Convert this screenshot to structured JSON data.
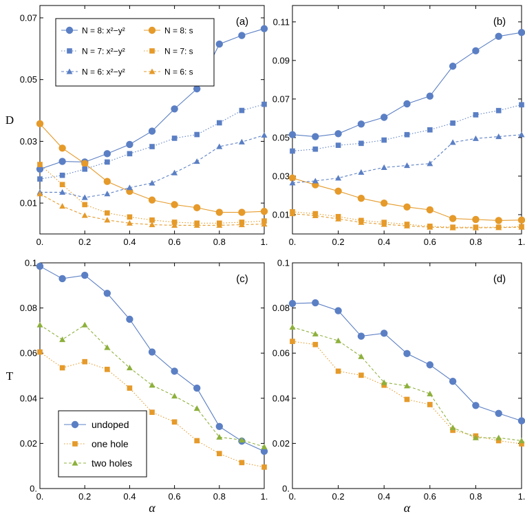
{
  "colors": {
    "blue": "#5b7fc4",
    "orange": "#e59a2a",
    "green": "#8db03c"
  },
  "chart_data": [
    {
      "panel": "(a)",
      "type": "line",
      "ylabel": "D",
      "ylim": [
        0.0,
        0.074
      ],
      "yticks": [
        0.01,
        0.03,
        0.05,
        0.07
      ],
      "ytick_labels": [
        "0.01",
        "0.03",
        "0.05",
        "0.07"
      ],
      "xlim": [
        0,
        1
      ],
      "xticks": [
        0,
        0.2,
        0.4,
        0.6,
        0.8,
        1.0
      ],
      "xtick_labels": [
        "0.",
        "0.2",
        "0.4",
        "0.6",
        "0.8",
        "1."
      ],
      "x": [
        0,
        0.1,
        0.2,
        0.3,
        0.4,
        0.5,
        0.6,
        0.7,
        0.8,
        0.9,
        1.0
      ],
      "legend_position": "top-left",
      "series": [
        {
          "name": "N = 8: x²−y²",
          "marker": "circle",
          "color": "blue",
          "dash": "solid",
          "values": [
            0.021,
            0.0235,
            0.0233,
            0.026,
            0.029,
            0.0333,
            0.0405,
            0.047,
            0.0615,
            0.0643,
            0.0665
          ]
        },
        {
          "name": "N = 8: s",
          "marker": "circle",
          "color": "orange",
          "dash": "solid",
          "values": [
            0.0357,
            0.0278,
            0.0228,
            0.017,
            0.0138,
            0.011,
            0.0095,
            0.0085,
            0.007,
            0.007,
            0.0073
          ]
        },
        {
          "name": "N = 7: x²−y²",
          "marker": "square",
          "color": "blue",
          "dash": "dotted",
          "values": [
            0.0178,
            0.019,
            0.021,
            0.0233,
            0.026,
            0.0283,
            0.031,
            0.0322,
            0.036,
            0.04,
            0.042
          ]
        },
        {
          "name": "N = 7: s",
          "marker": "square",
          "color": "orange",
          "dash": "dotted",
          "values": [
            0.0225,
            0.016,
            0.0095,
            0.0068,
            0.0055,
            0.0045,
            0.0038,
            0.0035,
            0.0035,
            0.0038,
            0.0042
          ]
        },
        {
          "name": "N = 6: x²−y²",
          "marker": "triangle",
          "color": "blue",
          "dash": "dashed",
          "values": [
            0.0135,
            0.0135,
            0.0118,
            0.013,
            0.015,
            0.0165,
            0.0198,
            0.0235,
            0.0283,
            0.0298,
            0.032
          ]
        },
        {
          "name": "N = 6: s",
          "marker": "triangle",
          "color": "orange",
          "dash": "dashed",
          "values": [
            0.013,
            0.009,
            0.006,
            0.0045,
            0.0035,
            0.003,
            0.0028,
            0.0028,
            0.0028,
            0.003,
            0.0032
          ]
        }
      ]
    },
    {
      "panel": "(b)",
      "type": "line",
      "ylabel": "",
      "ylim": [
        0.0,
        0.1185
      ],
      "yticks": [
        0.01,
        0.03,
        0.05,
        0.07,
        0.09,
        0.11
      ],
      "ytick_labels": [
        "0.01",
        "0.03",
        "0.05",
        "0.07",
        "0.09",
        "0.11"
      ],
      "xlim": [
        0,
        1
      ],
      "xticks": [
        0,
        0.2,
        0.4,
        0.6,
        0.8,
        1.0
      ],
      "xtick_labels": [
        "0.",
        "0.2",
        "0.4",
        "0.6",
        "0.8",
        "1."
      ],
      "x": [
        0,
        0.1,
        0.2,
        0.3,
        0.4,
        0.5,
        0.6,
        0.7,
        0.8,
        0.9,
        1.0
      ],
      "series": [
        {
          "marker": "circle",
          "color": "blue",
          "dash": "solid",
          "values": [
            0.0515,
            0.0505,
            0.052,
            0.057,
            0.0605,
            0.0675,
            0.0715,
            0.087,
            0.095,
            0.1025,
            0.1045
          ]
        },
        {
          "marker": "circle",
          "color": "orange",
          "dash": "solid",
          "values": [
            0.029,
            0.0255,
            0.0222,
            0.0185,
            0.016,
            0.014,
            0.0125,
            0.008,
            0.0075,
            0.007,
            0.0072
          ]
        },
        {
          "marker": "square",
          "color": "blue",
          "dash": "dotted",
          "values": [
            0.043,
            0.044,
            0.046,
            0.047,
            0.0487,
            0.0515,
            0.054,
            0.0575,
            0.0618,
            0.064,
            0.067
          ]
        },
        {
          "marker": "square",
          "color": "orange",
          "dash": "dotted",
          "values": [
            0.0115,
            0.0105,
            0.009,
            0.007,
            0.006,
            0.005,
            0.004,
            0.0035,
            0.0035,
            0.0035,
            0.0038
          ]
        },
        {
          "marker": "triangle",
          "color": "blue",
          "dash": "dashed",
          "values": [
            0.0265,
            0.0275,
            0.029,
            0.032,
            0.0345,
            0.0355,
            0.0365,
            0.0475,
            0.0495,
            0.0505,
            0.0515
          ]
        },
        {
          "marker": "triangle",
          "color": "orange",
          "dash": "dashed",
          "values": [
            0.0105,
            0.0095,
            0.0078,
            0.006,
            0.005,
            0.0042,
            0.0035,
            0.0032,
            0.0032,
            0.0033,
            0.0035
          ]
        }
      ]
    },
    {
      "panel": "(c)",
      "type": "line",
      "ylabel": "T",
      "xlabel": "α",
      "ylim": [
        0.0,
        0.1
      ],
      "yticks": [
        0.0,
        0.02,
        0.04,
        0.06,
        0.08,
        0.1
      ],
      "ytick_labels": [
        "0.",
        "0.02",
        "0.04",
        "0.06",
        "0.08",
        "0.1"
      ],
      "xlim": [
        0,
        1
      ],
      "xticks": [
        0,
        0.2,
        0.4,
        0.6,
        0.8,
        1.0
      ],
      "xtick_labels": [
        "0.",
        "0.2",
        "0.4",
        "0.6",
        "0.8",
        "1."
      ],
      "x": [
        0,
        0.1,
        0.2,
        0.3,
        0.4,
        0.5,
        0.6,
        0.7,
        0.8,
        0.9,
        1.0
      ],
      "legend_position": "bottom-left",
      "series": [
        {
          "name": "undoped",
          "marker": "circle",
          "color": "blue",
          "dash": "solid",
          "values": [
            0.0985,
            0.093,
            0.0945,
            0.0865,
            0.075,
            0.0605,
            0.052,
            0.0445,
            0.0275,
            0.021,
            0.0165
          ]
        },
        {
          "name": "one hole",
          "marker": "square",
          "color": "orange",
          "dash": "dotted",
          "values": [
            0.0605,
            0.0535,
            0.0562,
            0.0528,
            0.0445,
            0.0338,
            0.0295,
            0.0212,
            0.0155,
            0.0115,
            0.0095
          ]
        },
        {
          "name": "two holes",
          "marker": "triangle",
          "color": "green",
          "dash": "dashed",
          "values": [
            0.0725,
            0.066,
            0.0725,
            0.0625,
            0.0535,
            0.0458,
            0.041,
            0.0355,
            0.0228,
            0.0215,
            0.0185
          ]
        }
      ]
    },
    {
      "panel": "(d)",
      "type": "line",
      "ylabel": "",
      "xlabel": "α",
      "ylim": [
        0.0,
        0.1
      ],
      "yticks": [
        0.0,
        0.02,
        0.04,
        0.06,
        0.08,
        0.1
      ],
      "ytick_labels": [
        "0.",
        "0.02",
        "0.04",
        "0.06",
        "0.08",
        "0.1"
      ],
      "xlim": [
        0,
        1
      ],
      "xticks": [
        0,
        0.2,
        0.4,
        0.6,
        0.8,
        1.0
      ],
      "xtick_labels": [
        "0.",
        "0.2",
        "0.4",
        "0.6",
        "0.8",
        "1."
      ],
      "x": [
        0,
        0.1,
        0.2,
        0.3,
        0.4,
        0.5,
        0.6,
        0.7,
        0.8,
        0.9,
        1.0
      ],
      "series": [
        {
          "marker": "circle",
          "color": "blue",
          "dash": "solid",
          "values": [
            0.082,
            0.0823,
            0.0788,
            0.0675,
            0.0688,
            0.0598,
            0.0548,
            0.0475,
            0.0368,
            0.0333,
            0.03
          ]
        },
        {
          "marker": "square",
          "color": "orange",
          "dash": "dotted",
          "values": [
            0.0652,
            0.0638,
            0.052,
            0.0502,
            0.0458,
            0.0395,
            0.0372,
            0.0258,
            0.0233,
            0.0212,
            0.0198
          ]
        },
        {
          "marker": "triangle",
          "color": "green",
          "dash": "dashed",
          "values": [
            0.0715,
            0.0685,
            0.0655,
            0.0585,
            0.047,
            0.0455,
            0.042,
            0.027,
            0.0225,
            0.0225,
            0.0212
          ]
        }
      ]
    }
  ]
}
